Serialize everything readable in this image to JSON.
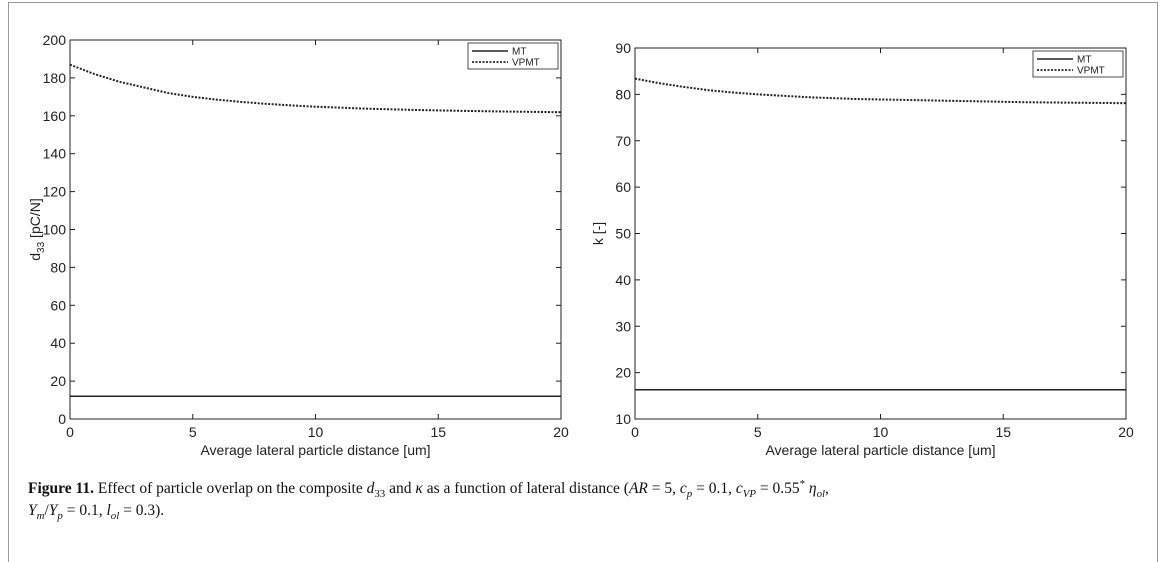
{
  "figure": {
    "caption_label": "Figure 11.",
    "caption_text": " Effect of particle overlap on the composite d₃₃ and κ as a function of lateral distance (AR = 5, c_p = 0.1, c_VP = 0.55 * η_ol, Y_m/Y_p = 0.1, l_ol = 0.3)."
  },
  "chart_data": [
    {
      "type": "line",
      "title": "",
      "xlabel": "Average lateral particle distance [um]",
      "ylabel": "d33 [pC/N]",
      "xlim": [
        0,
        20
      ],
      "ylim": [
        0,
        200
      ],
      "xticks": [
        0,
        5,
        10,
        15,
        20
      ],
      "yticks": [
        0,
        20,
        40,
        60,
        80,
        100,
        120,
        140,
        160,
        180,
        200
      ],
      "legend_position": "top-right",
      "series": [
        {
          "name": "MT",
          "style": "solid",
          "x": [
            0,
            2,
            4,
            6,
            8,
            10,
            12,
            14,
            16,
            18,
            20
          ],
          "y": [
            12,
            12,
            12,
            12,
            12,
            12,
            12,
            12,
            12,
            12,
            12
          ]
        },
        {
          "name": "VPMT",
          "style": "dotted",
          "x": [
            0,
            1,
            2,
            3,
            4,
            5,
            6,
            7,
            8,
            9,
            10,
            12,
            14,
            16,
            18,
            20
          ],
          "y": [
            187,
            182,
            178,
            175,
            172,
            170,
            168.5,
            167.3,
            166.3,
            165.5,
            164.8,
            163.8,
            163.1,
            162.6,
            162.2,
            161.9
          ]
        }
      ]
    },
    {
      "type": "line",
      "title": "",
      "xlabel": "Average lateral particle distance [um]",
      "ylabel": "k [-]",
      "xlim": [
        0,
        20
      ],
      "ylim": [
        10,
        90
      ],
      "xticks": [
        0,
        5,
        10,
        15,
        20
      ],
      "yticks": [
        10,
        20,
        30,
        40,
        50,
        60,
        70,
        80,
        90
      ],
      "legend_position": "top-right",
      "series": [
        {
          "name": "MT",
          "style": "solid",
          "x": [
            0,
            2,
            4,
            6,
            8,
            10,
            12,
            14,
            16,
            18,
            20
          ],
          "y": [
            16.3,
            16.3,
            16.3,
            16.3,
            16.3,
            16.3,
            16.3,
            16.3,
            16.3,
            16.3,
            16.3
          ]
        },
        {
          "name": "VPMT",
          "style": "dotted",
          "x": [
            0,
            1,
            2,
            3,
            4,
            5,
            6,
            7,
            8,
            9,
            10,
            12,
            14,
            16,
            18,
            20
          ],
          "y": [
            83.4,
            82.4,
            81.6,
            80.9,
            80.4,
            80.0,
            79.7,
            79.4,
            79.2,
            79.0,
            78.9,
            78.7,
            78.5,
            78.3,
            78.2,
            78.1
          ]
        }
      ]
    }
  ]
}
